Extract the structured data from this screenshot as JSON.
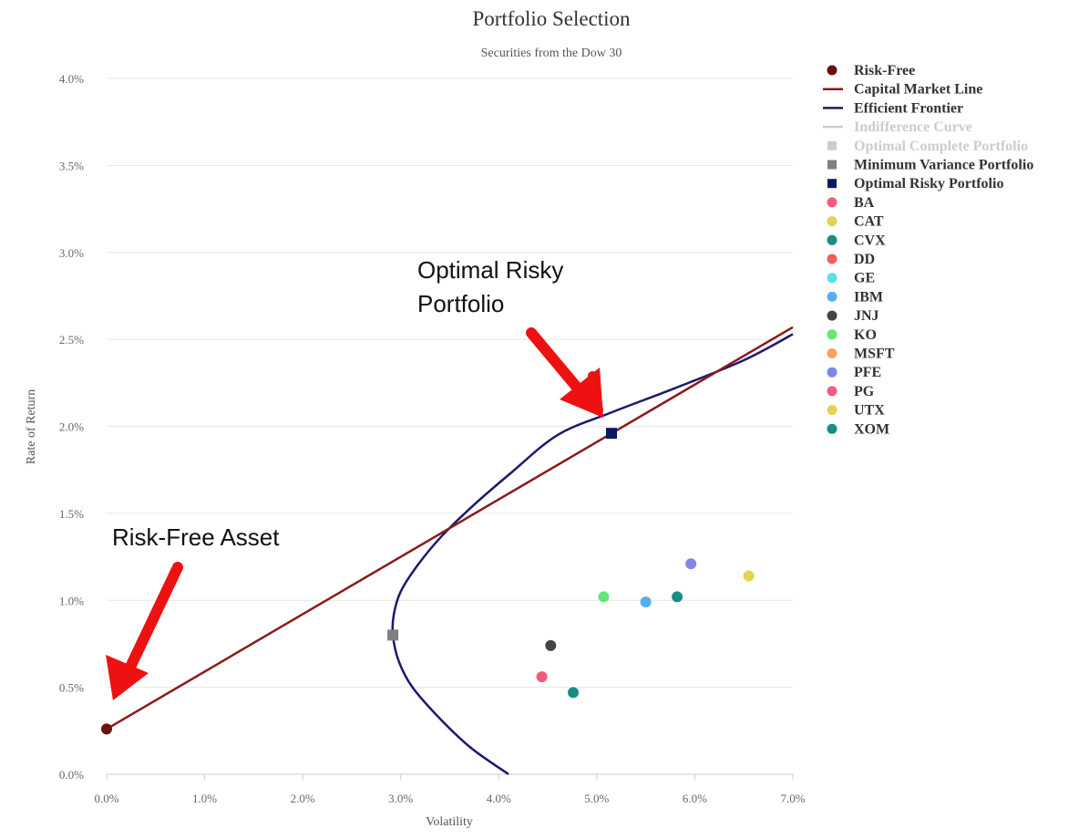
{
  "chart_data": {
    "type": "line",
    "title": "Portfolio Selection",
    "subtitle": "Securities from the Dow 30",
    "xlabel": "Volatility",
    "ylabel": "Rate of Return",
    "xlim": [
      0,
      7
    ],
    "ylim": [
      0,
      4
    ],
    "x_ticks": [
      "0.0%",
      "1.0%",
      "2.0%",
      "3.0%",
      "4.0%",
      "5.0%",
      "6.0%",
      "7.0%"
    ],
    "y_ticks": [
      "0.0%",
      "0.5%",
      "1.0%",
      "1.5%",
      "2.0%",
      "2.5%",
      "3.0%",
      "3.5%",
      "4.0%"
    ],
    "grid": true,
    "legend_position": "right",
    "colors": {
      "risk_free": "#6b0f0f",
      "cml": "#8b1a1a",
      "frontier": "#1a1a6e",
      "indifference": "#cccccc",
      "optimal_complete": "#cccccc",
      "min_variance": "#7f7f7f",
      "optimal_risky": "#0b1a5e",
      "annotation_arrow": "#ee1111"
    },
    "risk_free": {
      "x": 0.0,
      "y": 0.26
    },
    "capital_market_line": {
      "x": [
        0.0,
        7.0
      ],
      "y": [
        0.26,
        2.57
      ]
    },
    "efficient_frontier": {
      "x": [
        4.1,
        3.72,
        3.4,
        3.12,
        2.98,
        2.92,
        2.93,
        3.0,
        3.17,
        3.42,
        3.75,
        4.12,
        4.6,
        5.15,
        5.8,
        6.5,
        7.0
      ],
      "y": [
        0.0,
        0.15,
        0.32,
        0.5,
        0.65,
        0.8,
        0.92,
        1.05,
        1.2,
        1.37,
        1.55,
        1.73,
        1.95,
        2.08,
        2.22,
        2.38,
        2.53
      ]
    },
    "minimum_variance_portfolio": {
      "x": 2.92,
      "y": 0.8
    },
    "optimal_risky_portfolio": {
      "x": 5.15,
      "y": 1.96
    },
    "securities": [
      {
        "name": "BA",
        "color": "#f45b7a",
        "x": 4.44,
        "y": 0.56
      },
      {
        "name": "CAT",
        "color": "#e4d354",
        "x": 6.55,
        "y": 1.14
      },
      {
        "name": "CVX",
        "color": "#1a8c86",
        "x": 5.82,
        "y": 1.02
      },
      {
        "name": "DD",
        "color": "#f45b5b",
        "x": null,
        "y": null
      },
      {
        "name": "GE",
        "color": "#5de0e6",
        "x": null,
        "y": null
      },
      {
        "name": "IBM",
        "color": "#56aef0",
        "x": 5.5,
        "y": 0.99
      },
      {
        "name": "JNJ",
        "color": "#434348",
        "x": 4.53,
        "y": 0.74
      },
      {
        "name": "KO",
        "color": "#66e57a",
        "x": 5.07,
        "y": 1.02
      },
      {
        "name": "MSFT",
        "color": "#f7a35c",
        "x": null,
        "y": null
      },
      {
        "name": "PFE",
        "color": "#8085e9",
        "x": 5.96,
        "y": 1.21
      },
      {
        "name": "PG",
        "color": "#f15c80",
        "x": null,
        "y": null
      },
      {
        "name": "UTX",
        "color": "#e4d354",
        "x": null,
        "y": null
      },
      {
        "name": "XOM",
        "color": "#1a8c86",
        "x": 4.76,
        "y": 0.47
      }
    ],
    "legend": [
      {
        "label": "Risk-Free",
        "symbol": "circle",
        "color": "#6b0f0f",
        "hidden": false
      },
      {
        "label": "Capital Market Line",
        "symbol": "line",
        "color": "#8b1a1a",
        "hidden": false
      },
      {
        "label": "Efficient Frontier",
        "symbol": "line",
        "color": "#1a1a6e",
        "hidden": false
      },
      {
        "label": "Indifference Curve",
        "symbol": "line",
        "color": "#cccccc",
        "hidden": true
      },
      {
        "label": "Optimal Complete Portfolio",
        "symbol": "square",
        "color": "#cccccc",
        "hidden": true
      },
      {
        "label": "Minimum Variance Portfolio",
        "symbol": "square",
        "color": "#7f7f7f",
        "hidden": false
      },
      {
        "label": "Optimal Risky Portfolio",
        "symbol": "square",
        "color": "#0b1a5e",
        "hidden": false
      },
      {
        "label": "BA",
        "symbol": "circle",
        "color": "#f45b7a",
        "hidden": false
      },
      {
        "label": "CAT",
        "symbol": "circle",
        "color": "#e4d354",
        "hidden": false
      },
      {
        "label": "CVX",
        "symbol": "circle",
        "color": "#1a8c86",
        "hidden": false
      },
      {
        "label": "DD",
        "symbol": "circle",
        "color": "#f45b5b",
        "hidden": false
      },
      {
        "label": "GE",
        "symbol": "circle",
        "color": "#5de0e6",
        "hidden": false
      },
      {
        "label": "IBM",
        "symbol": "circle",
        "color": "#56aef0",
        "hidden": false
      },
      {
        "label": "JNJ",
        "symbol": "circle",
        "color": "#434348",
        "hidden": false
      },
      {
        "label": "KO",
        "symbol": "circle",
        "color": "#66e57a",
        "hidden": false
      },
      {
        "label": "MSFT",
        "symbol": "circle",
        "color": "#f7a35c",
        "hidden": false
      },
      {
        "label": "PFE",
        "symbol": "circle",
        "color": "#8085e9",
        "hidden": false
      },
      {
        "label": "PG",
        "symbol": "circle",
        "color": "#f15c80",
        "hidden": false
      },
      {
        "label": "UTX",
        "symbol": "circle",
        "color": "#e4d354",
        "hidden": false
      },
      {
        "label": "XOM",
        "symbol": "circle",
        "color": "#1a8c86",
        "hidden": false
      }
    ],
    "annotations": [
      {
        "name": "optimal-risky-annotation",
        "lines": [
          "Optimal Risky",
          "Portfolio"
        ]
      },
      {
        "name": "risk-free-annotation",
        "lines": [
          "Risk-Free Asset"
        ]
      }
    ]
  }
}
